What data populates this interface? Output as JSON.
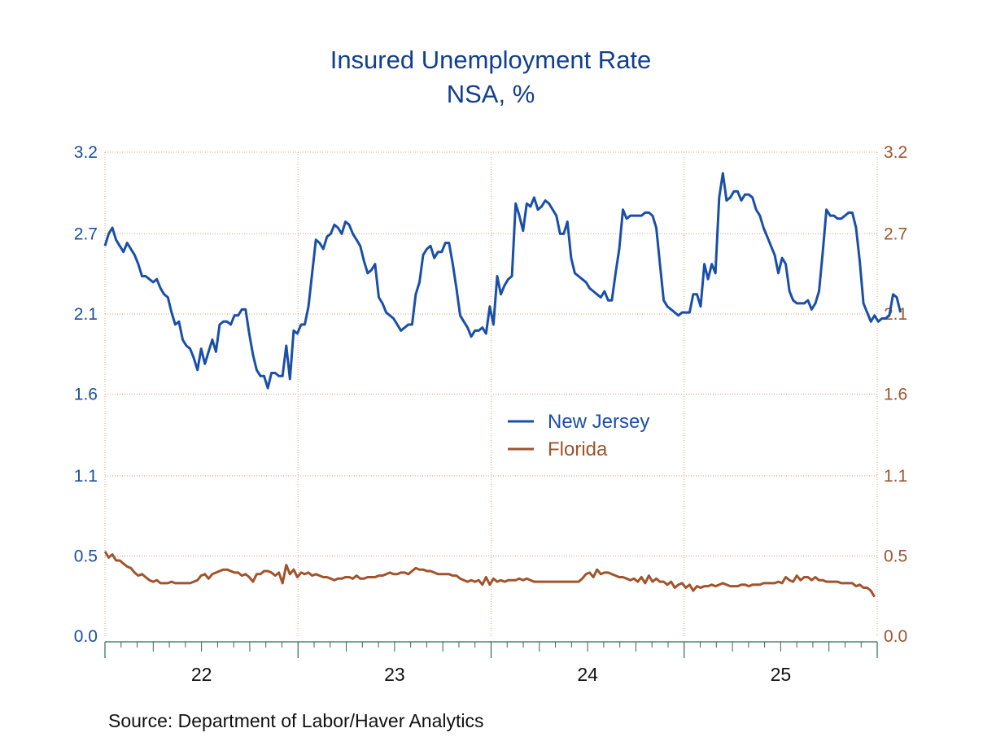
{
  "chart_data": {
    "type": "line",
    "title": "Insured Unemployment Rate",
    "subtitle": "NSA, %",
    "source": "Source:  Department of Labor/Haver Analytics",
    "ylim": [
      0.0,
      3.2
    ],
    "y_ticks_left": [
      "3.2",
      "2.7",
      "2.1",
      "1.6",
      "1.1",
      "0.5",
      "0.0"
    ],
    "y_ticks_right": [
      "3.2",
      "2.7",
      "2.1",
      "1.6",
      "1.1",
      "0.5",
      "0.0"
    ],
    "y_tick_values": [
      3.2,
      2.66,
      2.13,
      1.6,
      1.06,
      0.53,
      0.0
    ],
    "xlim": [
      2021.5,
      2025.5
    ],
    "x_tick_labels": [
      {
        "label": "22",
        "center": 2022.0
      },
      {
        "label": "23",
        "center": 2023.0
      },
      {
        "label": "24",
        "center": 2024.0
      },
      {
        "label": "25",
        "center": 2025.0
      }
    ],
    "x_major_ticks": [
      2021.5,
      2022.5,
      2023.5,
      2024.5,
      2025.5
    ],
    "grid": true,
    "legend_position": "center",
    "colors": {
      "New Jersey": "#1a4fa8",
      "Florida": "#a0542c",
      "axis": "#2d6a4f",
      "grid": "#e0a080"
    },
    "series": [
      {
        "name": "New Jersey",
        "x_start": 2021.5,
        "x_step_weeks": 1,
        "values": [
          2.58,
          2.66,
          2.7,
          2.62,
          2.58,
          2.54,
          2.6,
          2.56,
          2.52,
          2.46,
          2.38,
          2.38,
          2.36,
          2.34,
          2.36,
          2.3,
          2.26,
          2.24,
          2.14,
          2.06,
          2.08,
          1.96,
          1.92,
          1.9,
          1.84,
          1.76,
          1.9,
          1.8,
          1.88,
          1.96,
          1.88,
          2.06,
          2.08,
          2.08,
          2.06,
          2.12,
          2.12,
          2.16,
          2.16,
          2.0,
          1.86,
          1.76,
          1.72,
          1.72,
          1.64,
          1.74,
          1.74,
          1.72,
          1.72,
          1.92,
          1.7,
          2.02,
          2.0,
          2.06,
          2.06,
          2.18,
          2.4,
          2.62,
          2.6,
          2.56,
          2.64,
          2.66,
          2.72,
          2.7,
          2.66,
          2.74,
          2.72,
          2.66,
          2.62,
          2.58,
          2.48,
          2.4,
          2.42,
          2.46,
          2.24,
          2.2,
          2.14,
          2.12,
          2.1,
          2.06,
          2.02,
          2.04,
          2.06,
          2.06,
          2.26,
          2.34,
          2.52,
          2.56,
          2.58,
          2.5,
          2.54,
          2.54,
          2.6,
          2.6,
          2.46,
          2.3,
          2.12,
          2.08,
          2.04,
          1.98,
          2.02,
          2.02,
          2.04,
          2.0,
          2.18,
          2.06,
          2.38,
          2.26,
          2.32,
          2.36,
          2.38,
          2.86,
          2.78,
          2.68,
          2.86,
          2.84,
          2.9,
          2.82,
          2.84,
          2.88,
          2.86,
          2.82,
          2.78,
          2.66,
          2.66,
          2.74,
          2.5,
          2.4,
          2.38,
          2.36,
          2.34,
          2.3,
          2.28,
          2.26,
          2.24,
          2.28,
          2.22,
          2.22,
          2.4,
          2.56,
          2.82,
          2.76,
          2.78,
          2.78,
          2.78,
          2.78,
          2.8,
          2.8,
          2.78,
          2.7,
          2.46,
          2.22,
          2.18,
          2.16,
          2.14,
          2.12,
          2.14,
          2.14,
          2.14,
          2.26,
          2.26,
          2.18,
          2.46,
          2.36,
          2.46,
          2.4,
          2.9,
          3.06,
          2.88,
          2.9,
          2.94,
          2.94,
          2.88,
          2.92,
          2.92,
          2.9,
          2.82,
          2.78,
          2.7,
          2.64,
          2.58,
          2.52,
          2.4,
          2.5,
          2.46,
          2.28,
          2.22,
          2.2,
          2.2,
          2.2,
          2.22,
          2.16,
          2.2,
          2.28,
          2.54,
          2.82,
          2.78,
          2.78,
          2.76,
          2.76,
          2.78,
          2.8,
          2.8,
          2.7,
          2.48,
          2.2,
          2.14,
          2.08,
          2.12,
          2.08,
          2.1,
          2.1,
          2.12,
          2.26,
          2.24,
          2.14
        ]
      },
      {
        "name": "Florida",
        "x_start": 2021.5,
        "x_step_weeks": 1,
        "values": [
          0.56,
          0.52,
          0.54,
          0.5,
          0.5,
          0.48,
          0.46,
          0.45,
          0.42,
          0.4,
          0.41,
          0.39,
          0.37,
          0.36,
          0.37,
          0.35,
          0.35,
          0.35,
          0.36,
          0.35,
          0.35,
          0.35,
          0.35,
          0.35,
          0.36,
          0.37,
          0.4,
          0.41,
          0.38,
          0.41,
          0.42,
          0.43,
          0.44,
          0.44,
          0.43,
          0.42,
          0.42,
          0.4,
          0.41,
          0.39,
          0.36,
          0.41,
          0.41,
          0.43,
          0.43,
          0.42,
          0.4,
          0.42,
          0.35,
          0.47,
          0.41,
          0.44,
          0.39,
          0.42,
          0.41,
          0.42,
          0.4,
          0.41,
          0.4,
          0.39,
          0.39,
          0.38,
          0.37,
          0.38,
          0.38,
          0.39,
          0.39,
          0.38,
          0.4,
          0.38,
          0.38,
          0.39,
          0.39,
          0.39,
          0.4,
          0.4,
          0.41,
          0.42,
          0.41,
          0.41,
          0.42,
          0.42,
          0.41,
          0.43,
          0.45,
          0.44,
          0.44,
          0.43,
          0.43,
          0.42,
          0.41,
          0.41,
          0.41,
          0.41,
          0.4,
          0.4,
          0.38,
          0.37,
          0.36,
          0.37,
          0.36,
          0.37,
          0.34,
          0.39,
          0.34,
          0.38,
          0.36,
          0.37,
          0.36,
          0.37,
          0.37,
          0.37,
          0.38,
          0.37,
          0.38,
          0.37,
          0.36,
          0.36,
          0.36,
          0.36,
          0.36,
          0.36,
          0.36,
          0.36,
          0.36,
          0.36,
          0.36,
          0.36,
          0.36,
          0.38,
          0.41,
          0.42,
          0.39,
          0.44,
          0.41,
          0.42,
          0.42,
          0.41,
          0.4,
          0.39,
          0.39,
          0.38,
          0.37,
          0.38,
          0.36,
          0.39,
          0.35,
          0.4,
          0.36,
          0.38,
          0.36,
          0.36,
          0.34,
          0.36,
          0.32,
          0.34,
          0.35,
          0.32,
          0.34,
          0.3,
          0.33,
          0.32,
          0.33,
          0.33,
          0.34,
          0.33,
          0.34,
          0.35,
          0.34,
          0.33,
          0.33,
          0.33,
          0.34,
          0.34,
          0.33,
          0.34,
          0.34,
          0.34,
          0.35,
          0.35,
          0.35,
          0.35,
          0.36,
          0.35,
          0.39,
          0.37,
          0.36,
          0.4,
          0.37,
          0.39,
          0.39,
          0.37,
          0.39,
          0.37,
          0.37,
          0.36,
          0.36,
          0.36,
          0.36,
          0.35,
          0.35,
          0.35,
          0.35,
          0.33,
          0.34,
          0.32,
          0.32,
          0.3,
          0.26
        ]
      }
    ]
  }
}
